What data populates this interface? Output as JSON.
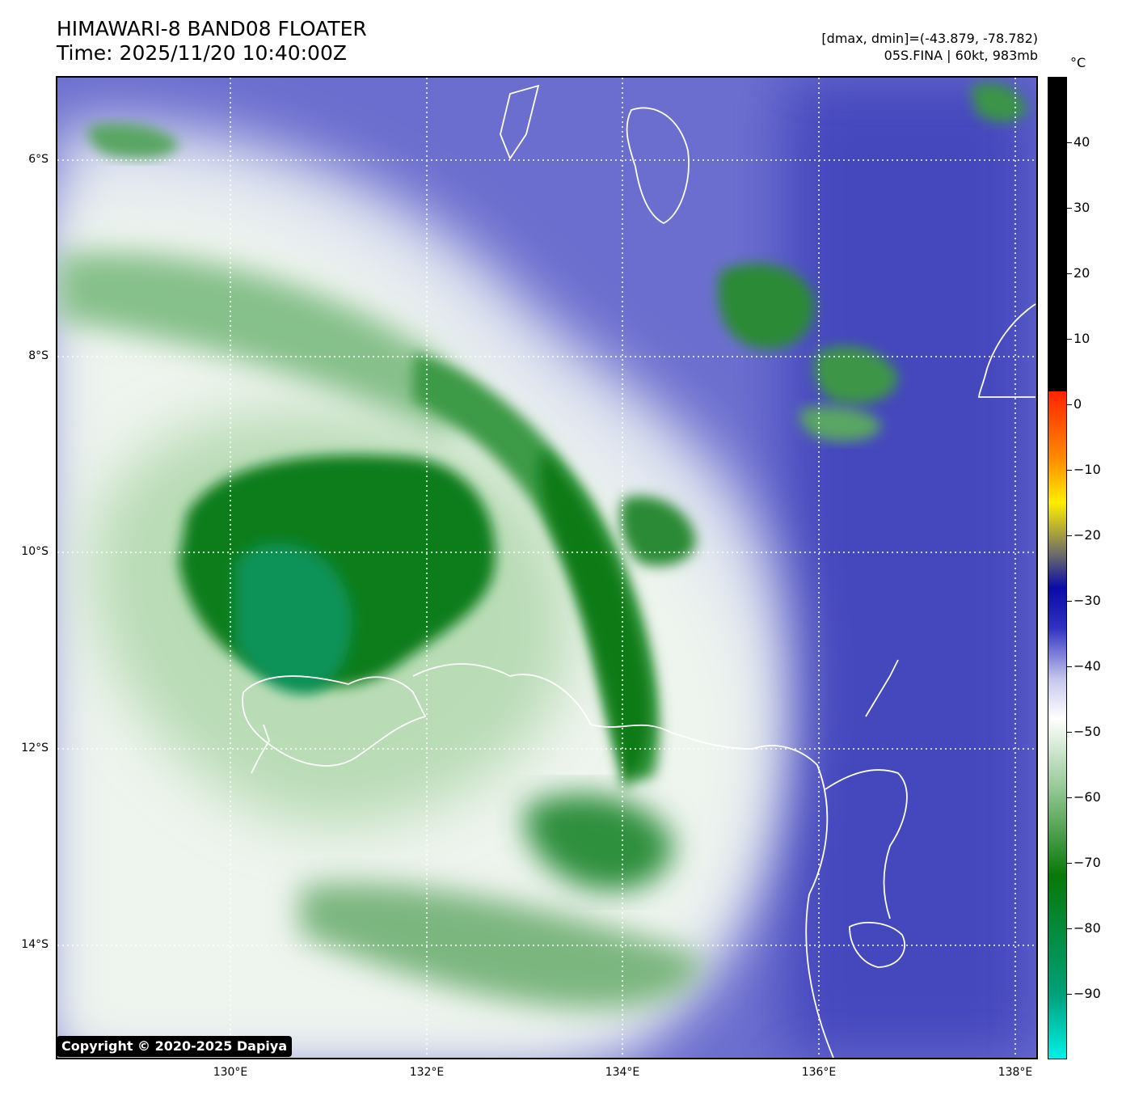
{
  "title": {
    "line1": "HIMAWARI-8 BAND08 FLOATER",
    "line2": "Time: 2025/11/20 10:40:00Z"
  },
  "info": {
    "range": "[dmax, dmin]=(-43.879, -78.782)",
    "storm": "05S.FINA | 60kt, 983mb"
  },
  "colorbar": {
    "unit": "°C",
    "ticks": [
      "40",
      "30",
      "20",
      "10",
      "0",
      "−10",
      "−20",
      "−30",
      "−40",
      "−50",
      "−60",
      "−70",
      "−80",
      "−90"
    ],
    "tick_values": [
      40,
      30,
      20,
      10,
      0,
      -10,
      -20,
      -30,
      -40,
      -50,
      -60,
      -70,
      -80,
      -90
    ],
    "range": [
      -100,
      50
    ],
    "colors": {
      "warm": "#000000",
      "red": "#ff2200",
      "orange": "#ff8800",
      "yellow": "#ffee00",
      "gray": "#6a6a6a",
      "navy": "#0a0aa8",
      "blue": "#2f2fc0",
      "lavender": "#c6c6ee",
      "white": "#ffffff",
      "lightgreen": "#9ccc9c",
      "green": "#087808",
      "teal": "#00a078",
      "cyan": "#00f0e8"
    }
  },
  "map": {
    "lat_labels": [
      "6°S",
      "8°S",
      "10°S",
      "12°S",
      "14°S"
    ],
    "lat_values": [
      -6,
      -8,
      -10,
      -12,
      -14
    ],
    "lon_labels": [
      "130°E",
      "132°E",
      "134°E",
      "136°E",
      "138°E"
    ],
    "lon_values": [
      130,
      132,
      134,
      136,
      138
    ],
    "extent": {
      "lon_min": 128.25,
      "lon_max": 138.25,
      "lat_max": -5.15,
      "lat_min": -15.15
    }
  },
  "copyright": "Copyright © 2020-2025 Dapiya"
}
